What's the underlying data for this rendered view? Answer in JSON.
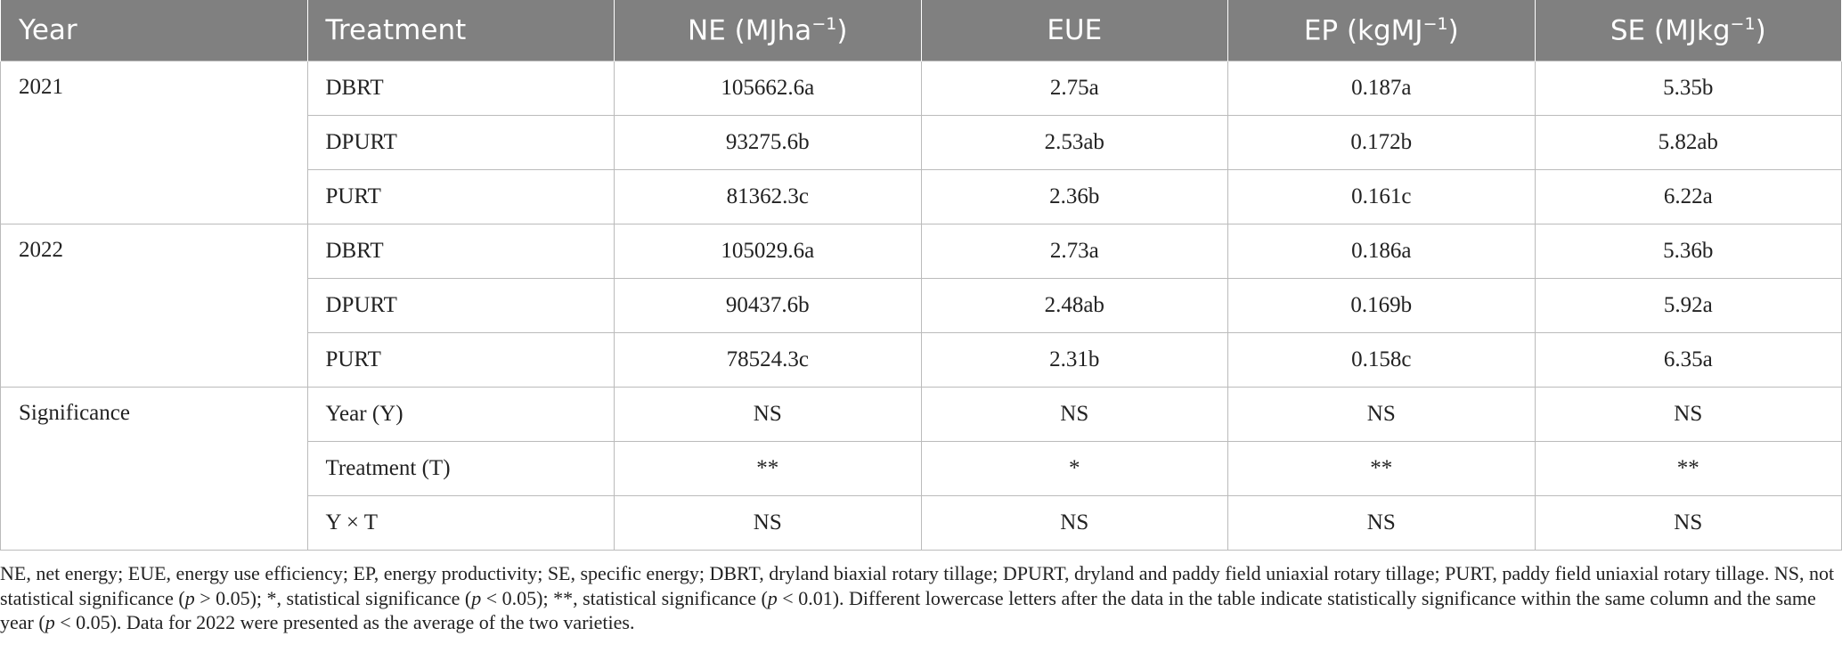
{
  "table": {
    "header": [
      {
        "text": "Year"
      },
      {
        "text": "Treatment"
      },
      {
        "text": "NE (MJha",
        "sup": "−1",
        "end": ")"
      },
      {
        "text": "EUE"
      },
      {
        "text": "EP (kgMJ",
        "sup": "−1",
        "end": ")"
      },
      {
        "text": "SE (MJkg",
        "sup": "−1",
        "end": ")"
      }
    ],
    "groups": [
      {
        "label": "2021",
        "rows": [
          [
            "DBRT",
            "105662.6a",
            "2.75a",
            "0.187a",
            "5.35b"
          ],
          [
            "DPURT",
            "93275.6b",
            "2.53ab",
            "0.172b",
            "5.82ab"
          ],
          [
            "PURT",
            "81362.3c",
            "2.36b",
            "0.161c",
            "6.22a"
          ]
        ]
      },
      {
        "label": "2022",
        "rows": [
          [
            "DBRT",
            "105029.6a",
            "2.73a",
            "0.186a",
            "5.36b"
          ],
          [
            "DPURT",
            "90437.6b",
            "2.48ab",
            "0.169b",
            "5.92a"
          ],
          [
            "PURT",
            "78524.3c",
            "2.31b",
            "0.158c",
            "6.35a"
          ]
        ]
      },
      {
        "label": "Significance",
        "rows": [
          [
            "Year (Y)",
            "NS",
            "NS",
            "NS",
            "NS"
          ],
          [
            "Treatment (T)",
            "**",
            "*",
            "**",
            "**"
          ],
          [
            "Y × T",
            "NS",
            "NS",
            "NS",
            "NS"
          ]
        ]
      }
    ]
  },
  "footnote": [
    "NE, net energy; EUE, energy use efficiency; EP, energy productivity; SE, specific energy; DBRT, dryland biaxial rotary tillage; DPURT, dryland and paddy field uniaxial rotary tillage; PURT, paddy field uniaxial rotary tillage. NS, not statistical significance (",
    "p",
    " > 0.05); *, statistical significance (",
    "p",
    " < 0.05); **, statistical significance (",
    "p",
    " < 0.01). Different lowercase letters after the data in the table indicate statistically significance within the same column and the same year (",
    "p",
    " < 0.05). Data for 2022 were presented as the average of the two varieties."
  ]
}
